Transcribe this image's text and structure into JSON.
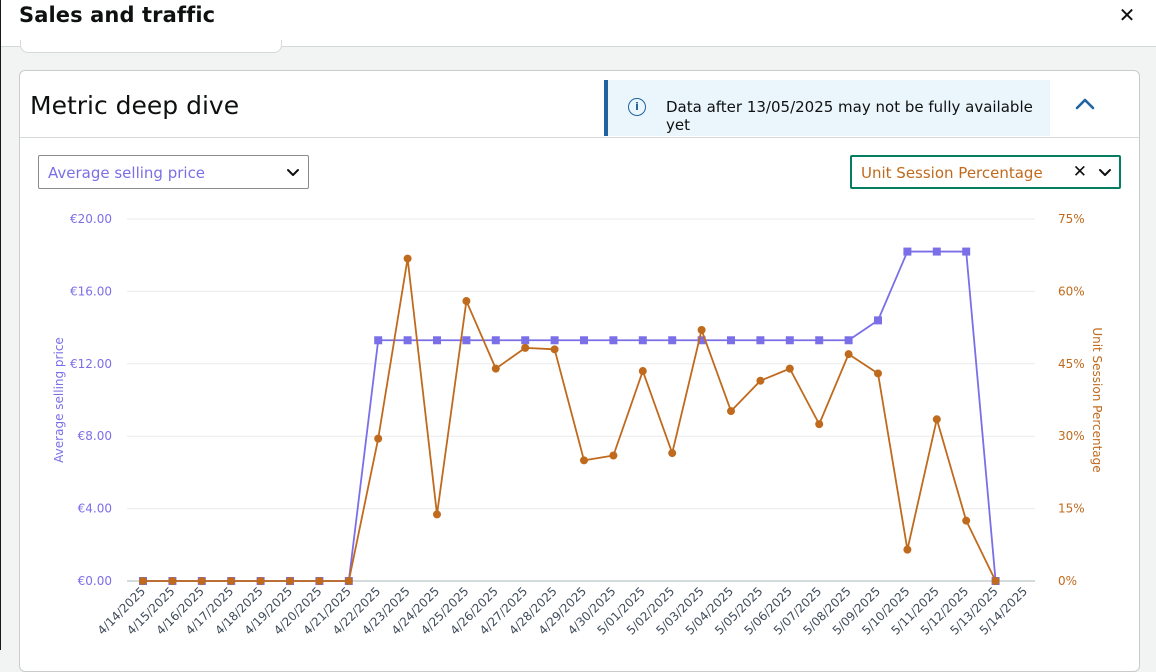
{
  "modal": {
    "title": "Sales and traffic",
    "close_icon": "close-icon"
  },
  "card": {
    "title": "Metric deep dive",
    "info_banner": {
      "icon": "info-icon",
      "glyph": "i",
      "text": "Data after 13/05/2025 may not be fully available yet"
    },
    "collapse_icon": "chevron-up-icon"
  },
  "controls": {
    "left_metric": "Average selling price",
    "right_metric": "Unit Session Percentage"
  },
  "colors": {
    "left_series": "#7b6fe8",
    "right_series": "#c06a1d",
    "accent_border": "#067d62",
    "info": "#2162a1"
  },
  "chart_data": {
    "type": "line",
    "x": [
      "4/14/2025",
      "4/15/2025",
      "4/16/2025",
      "4/17/2025",
      "4/18/2025",
      "4/19/2025",
      "4/20/2025",
      "4/21/2025",
      "4/22/2025",
      "4/23/2025",
      "4/24/2025",
      "4/25/2025",
      "4/26/2025",
      "4/27/2025",
      "4/28/2025",
      "4/29/2025",
      "4/30/2025",
      "5/01/2025",
      "5/02/2025",
      "5/03/2025",
      "5/04/2025",
      "5/05/2025",
      "5/06/2025",
      "5/07/2025",
      "5/08/2025",
      "5/09/2025",
      "5/10/2025",
      "5/11/2025",
      "5/12/2025",
      "5/13/2025",
      "5/14/2025"
    ],
    "series": [
      {
        "name": "Average selling price",
        "axis": "left",
        "marker": "square",
        "values": [
          0,
          0,
          0,
          0,
          0,
          0,
          0,
          0,
          13.3,
          13.3,
          13.3,
          13.3,
          13.3,
          13.3,
          13.3,
          13.3,
          13.3,
          13.3,
          13.3,
          13.3,
          13.3,
          13.3,
          13.3,
          13.3,
          13.3,
          14.4,
          18.2,
          18.2,
          18.2,
          0,
          null
        ]
      },
      {
        "name": "Unit Session Percentage",
        "axis": "right",
        "marker": "circle",
        "values": [
          0,
          0,
          0,
          0,
          0,
          0,
          0,
          0,
          29.5,
          66.8,
          13.8,
          58,
          44,
          48.3,
          48,
          25,
          26,
          43.5,
          26.5,
          52,
          35.2,
          41.5,
          44,
          32.5,
          47,
          43,
          6.5,
          33.5,
          12.5,
          0,
          null
        ]
      }
    ],
    "y_left": {
      "label": "Average selling price",
      "ticks": [
        "€0.00",
        "€4.00",
        "€8.00",
        "€12.00",
        "€16.00",
        "€20.00"
      ],
      "range": [
        0,
        20
      ]
    },
    "y_right": {
      "label": "Unit Session Percentage",
      "ticks": [
        "0%",
        "15%",
        "30%",
        "45%",
        "60%",
        "75%"
      ],
      "range": [
        0,
        75
      ]
    },
    "grid": true,
    "legend": "none"
  }
}
